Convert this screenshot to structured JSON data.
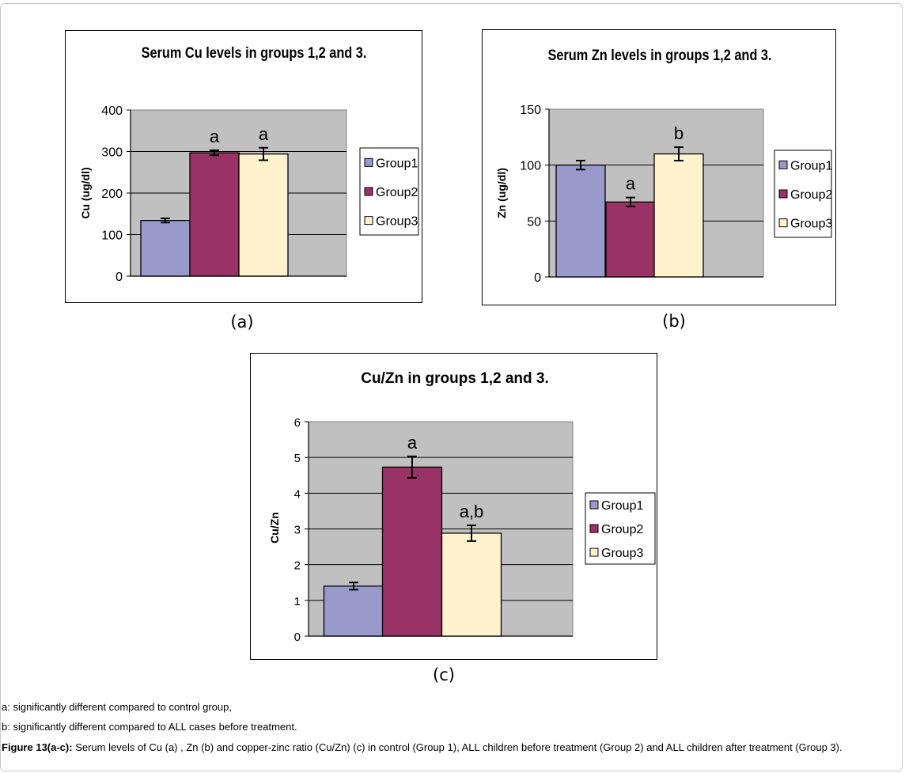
{
  "chart_data": [
    {
      "type": "bar",
      "title": "Serum Cu levels in groups 1,2 and 3.",
      "ylabel": "Cu (ug/dl)",
      "xlabel": "",
      "ylim": [
        0,
        400
      ],
      "yticks": [
        "0",
        "100",
        "200",
        "300",
        "400"
      ],
      "legend_position": "right",
      "series": [
        {
          "name": "Group1",
          "value": 134,
          "error": 5,
          "annotation": "",
          "color": "#9999cc"
        },
        {
          "name": "Group2",
          "value": 297,
          "error": 6,
          "annotation": "a",
          "color": "#993366"
        },
        {
          "name": "Group3",
          "value": 294,
          "error": 15,
          "annotation": "a",
          "color": "#fff2cc"
        }
      ],
      "sublabel": "(a)"
    },
    {
      "type": "bar",
      "title": "Serum Zn levels in groups 1,2 and 3.",
      "ylabel": "Zn (ug/dl)",
      "xlabel": "",
      "ylim": [
        0,
        150
      ],
      "yticks": [
        "0",
        "50",
        "100",
        "150"
      ],
      "legend_position": "right",
      "series": [
        {
          "name": "Group1",
          "value": 100,
          "error": 4,
          "annotation": "",
          "color": "#9999cc"
        },
        {
          "name": "Group2",
          "value": 67,
          "error": 4,
          "annotation": "a",
          "color": "#993366"
        },
        {
          "name": "Group3",
          "value": 110,
          "error": 6,
          "annotation": "b",
          "color": "#fff2cc"
        }
      ],
      "sublabel": "(b)"
    },
    {
      "type": "bar",
      "title": "Cu/Zn in groups 1,2 and 3.",
      "ylabel": "Cu/Zn",
      "xlabel": "",
      "ylim": [
        0,
        6
      ],
      "yticks": [
        "0",
        "1",
        "2",
        "3",
        "4",
        "5",
        "6"
      ],
      "legend_position": "right",
      "series": [
        {
          "name": "Group1",
          "value": 1.4,
          "error": 0.1,
          "annotation": "",
          "color": "#9999cc"
        },
        {
          "name": "Group2",
          "value": 4.73,
          "error": 0.3,
          "annotation": "a",
          "color": "#993366"
        },
        {
          "name": "Group3",
          "value": 2.88,
          "error": 0.22,
          "annotation": "a,b",
          "color": "#fff2cc"
        }
      ],
      "sublabel": "(c)"
    }
  ],
  "footnotes": {
    "a": "a: significantly different compared to control group,",
    "b": "b: significantly different compared to ALL cases before treatment."
  },
  "caption": {
    "label": "Figure 13(a-c):",
    "text": " Serum levels of Cu (a) , Zn (b) and copper-zinc ratio (Cu/Zn) (c) in control (Group 1), ALL children before treatment (Group 2) and ALL children after treatment (Group 3)."
  }
}
